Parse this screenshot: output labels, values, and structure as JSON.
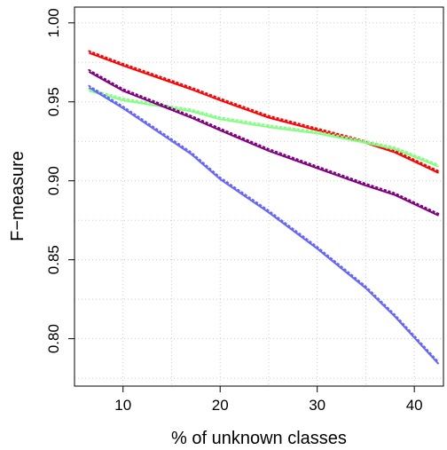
{
  "chart_data": {
    "type": "line",
    "xlabel": "% of unknown classes",
    "ylabel": "F−measure",
    "xlim": [
      5.0,
      43.0
    ],
    "ylim": [
      0.77,
      1.01
    ],
    "xticks": [
      10,
      20,
      30,
      40
    ],
    "xtick_labels": [
      "10",
      "20",
      "30",
      "40"
    ],
    "yticks": [
      0.8,
      0.85,
      0.9,
      0.95,
      1.0
    ],
    "ytick_labels": [
      "0.80",
      "0.85",
      "0.90",
      "0.95",
      "1.00"
    ],
    "grid": true,
    "legend": "none",
    "series": [
      {
        "color": "#ff0000",
        "x": [
          6.5,
          10,
          17,
          20,
          25,
          30,
          35,
          38,
          42.5
        ],
        "y": [
          0.981,
          0.973,
          0.958,
          0.951,
          0.94,
          0.932,
          0.924,
          0.918,
          0.905
        ]
      },
      {
        "color": "#80ff80",
        "x": [
          6.5,
          10,
          17,
          20,
          25,
          30,
          35,
          38,
          42.5
        ],
        "y": [
          0.957,
          0.951,
          0.944,
          0.939,
          0.934,
          0.93,
          0.924,
          0.92,
          0.909
        ]
      },
      {
        "color": "#800080",
        "x": [
          6.5,
          10,
          17,
          20,
          25,
          30,
          35,
          38,
          42.5
        ],
        "y": [
          0.969,
          0.957,
          0.94,
          0.932,
          0.919,
          0.908,
          0.897,
          0.891,
          0.878
        ]
      },
      {
        "color": "#6666ff",
        "x": [
          6.5,
          10,
          17,
          20,
          25,
          30,
          35,
          38,
          42.5
        ],
        "y": [
          0.959,
          0.946,
          0.917,
          0.901,
          0.88,
          0.857,
          0.832,
          0.814,
          0.784
        ]
      }
    ]
  }
}
